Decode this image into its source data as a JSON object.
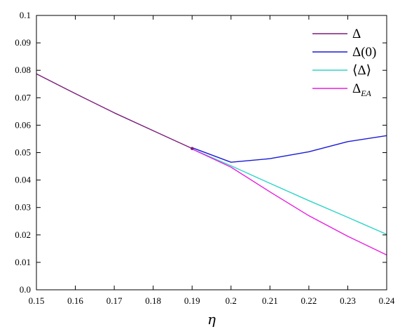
{
  "chart_data": {
    "type": "line",
    "title": "",
    "xlabel": "η",
    "ylabel": "",
    "xlim": [
      0.15,
      0.24
    ],
    "ylim": [
      0,
      0.1
    ],
    "x_ticks": [
      "0.15",
      "0.16",
      "0.17",
      "0.18",
      "0.19",
      "0.2",
      "0.21",
      "0.22",
      "0.23",
      "0.24"
    ],
    "y_ticks": [
      "0.0",
      "0.01",
      "0.02",
      "0.03",
      "0.04",
      "0.05",
      "0.06",
      "0.07",
      "0.08",
      "0.09",
      "0.1"
    ],
    "grid": false,
    "legend_position": "top-right",
    "series": [
      {
        "name": "Δ",
        "color": "#7b1a7b",
        "x": [
          0.15,
          0.16,
          0.17,
          0.18,
          0.19
        ],
        "y": [
          0.0787,
          0.0715,
          0.0645,
          0.058,
          0.0515
        ]
      },
      {
        "name": "Δ(0)",
        "color": "#1a1ad6",
        "x": [
          0.19,
          0.2,
          0.21,
          0.22,
          0.23,
          0.24
        ],
        "y": [
          0.0518,
          0.0465,
          0.0478,
          0.0503,
          0.054,
          0.0562
        ]
      },
      {
        "name": "⟨Δ⟩",
        "color": "#30d4c8",
        "x": [
          0.19,
          0.2,
          0.21,
          0.22,
          0.23,
          0.24
        ],
        "y": [
          0.0513,
          0.0452,
          0.0388,
          0.0325,
          0.0264,
          0.0202
        ]
      },
      {
        "name": "Δ_EA",
        "color": "#e81ee0",
        "x": [
          0.19,
          0.2,
          0.21,
          0.22,
          0.23,
          0.24
        ],
        "y": [
          0.0513,
          0.0447,
          0.0357,
          0.027,
          0.0195,
          0.0127
        ]
      }
    ],
    "markers": [
      {
        "x": 0.19,
        "y": 0.0515,
        "color": "#7b1a7b"
      }
    ]
  }
}
